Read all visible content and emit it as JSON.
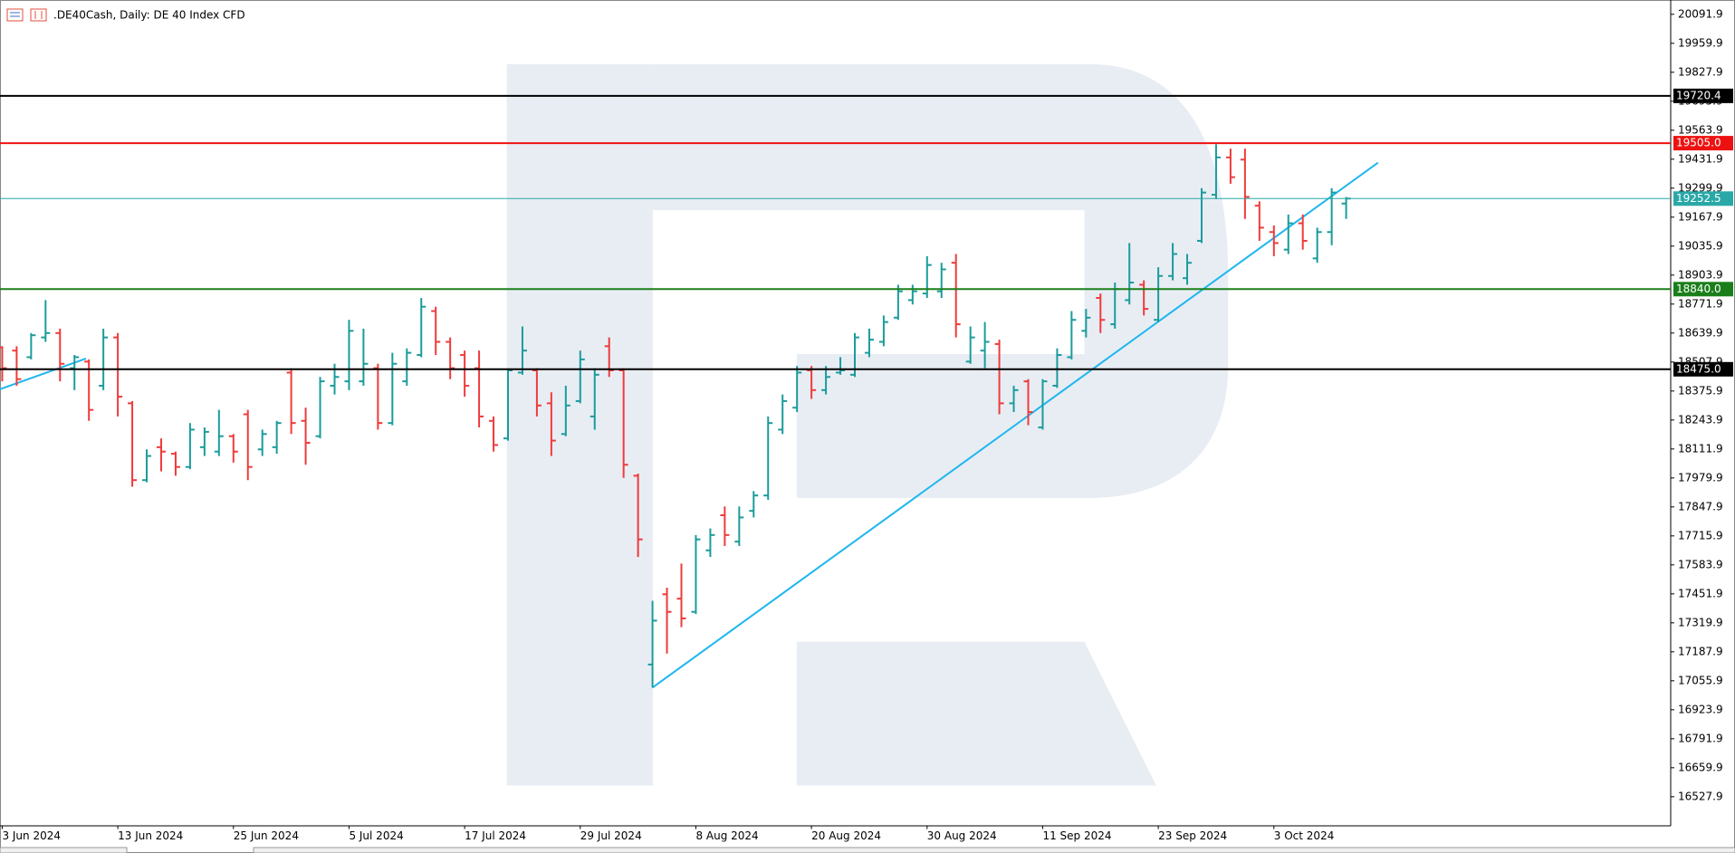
{
  "chart_data": {
    "type": "ohlc",
    "title": ".DE40Cash, Daily:  DE 40 Index CFD",
    "categories": [
      "3 Jun 2024",
      null,
      null,
      null,
      null,
      null,
      null,
      null,
      "13 Jun 2024",
      null,
      null,
      null,
      null,
      null,
      null,
      null,
      "25 Jun 2024",
      null,
      null,
      null,
      null,
      null,
      null,
      null,
      "5 Jul 2024",
      null,
      null,
      null,
      null,
      null,
      null,
      null,
      "17 Jul 2024",
      null,
      null,
      null,
      null,
      null,
      null,
      null,
      "29 Jul 2024",
      null,
      null,
      null,
      null,
      null,
      null,
      null,
      "8 Aug 2024",
      null,
      null,
      null,
      null,
      null,
      null,
      null,
      "20 Aug 2024",
      null,
      null,
      null,
      null,
      null,
      null,
      null,
      "30 Aug 2024",
      null,
      null,
      null,
      null,
      null,
      null,
      null,
      "11 Sep 2024",
      null,
      null,
      null,
      null,
      null,
      null,
      null,
      "23 Sep 2024",
      null,
      null,
      null,
      null,
      null,
      null,
      null,
      "3 Oct 2024",
      null,
      null,
      null,
      null,
      null
    ],
    "open": [
      18575,
      18560,
      18530,
      18620,
      18640,
      18480,
      18510,
      18400,
      18620,
      18320,
      17970,
      18120,
      18090,
      18030,
      18120,
      18100,
      18170,
      18270,
      18110,
      18120,
      18460,
      18240,
      18170,
      18400,
      18420,
      18420,
      18480,
      18230,
      18420,
      18540,
      18740,
      18600,
      18540,
      18480,
      18240,
      18160,
      18460,
      18470,
      18320,
      18180,
      18330,
      18260,
      18580,
      18470,
      17990,
      17130,
      17450,
      17430,
      17370,
      17650,
      17810,
      17690,
      17830,
      17900,
      18200,
      18300,
      18470,
      18380,
      18460,
      18450,
      18550,
      18600,
      18710,
      18790,
      18820,
      18830,
      18960,
      18510,
      18560,
      18590,
      18320,
      18420,
      18210,
      18400,
      18530,
      18650,
      18800,
      18680,
      18790,
      18860,
      18700,
      18900,
      18890,
      19060,
      19270,
      19440,
      19430,
      19220,
      19100,
      19020,
      19140,
      18980,
      19100,
      19230
    ],
    "high": [
      18580,
      18580,
      18640,
      18790,
      18660,
      18540,
      18520,
      18660,
      18640,
      18330,
      18110,
      18160,
      18100,
      18230,
      18210,
      18290,
      18180,
      18290,
      18200,
      18240,
      18480,
      18300,
      18440,
      18500,
      18700,
      18660,
      18500,
      18550,
      18570,
      18800,
      18760,
      18620,
      18560,
      18560,
      18260,
      18480,
      18670,
      18480,
      18370,
      18400,
      18560,
      18480,
      18620,
      18480,
      18000,
      17420,
      17480,
      17590,
      17720,
      17750,
      17850,
      17850,
      17920,
      18260,
      18360,
      18490,
      18490,
      18490,
      18530,
      18640,
      18660,
      18720,
      18860,
      18860,
      18990,
      18960,
      19000,
      18670,
      18690,
      18610,
      18400,
      18430,
      18430,
      18570,
      18740,
      18750,
      18820,
      18870,
      19050,
      18880,
      18940,
      19050,
      19000,
      19300,
      19500,
      19480,
      19480,
      19240,
      19130,
      19180,
      19180,
      19120,
      19300,
      19260
    ],
    "low": [
      18420,
      18400,
      18520,
      18600,
      18420,
      18380,
      18240,
      18380,
      18260,
      17940,
      17960,
      18010,
      17990,
      18020,
      18080,
      18080,
      18050,
      17970,
      18080,
      18090,
      18180,
      18040,
      18160,
      18360,
      18380,
      18400,
      18200,
      18220,
      18400,
      18530,
      18540,
      18430,
      18350,
      18210,
      18100,
      18150,
      18450,
      18260,
      18080,
      18170,
      18320,
      18200,
      18440,
      17980,
      17620,
      17025,
      17180,
      17300,
      17360,
      17620,
      17670,
      17670,
      17800,
      17880,
      18180,
      18280,
      18340,
      18360,
      18450,
      18440,
      18530,
      18580,
      18700,
      18770,
      18800,
      18800,
      18620,
      18500,
      18480,
      18270,
      18280,
      18220,
      18200,
      18390,
      18520,
      18620,
      18640,
      18660,
      18770,
      18720,
      18690,
      18880,
      18860,
      19050,
      19250,
      19320,
      19160,
      19060,
      18990,
      19000,
      19020,
      18960,
      19040,
      19160
    ],
    "close": [
      18480,
      18430,
      18630,
      18640,
      18500,
      18530,
      18290,
      18620,
      18350,
      17970,
      18080,
      18100,
      18030,
      18200,
      18190,
      18170,
      18100,
      18030,
      18180,
      18230,
      18230,
      18140,
      18420,
      18440,
      18650,
      18500,
      18230,
      18500,
      18550,
      18760,
      18600,
      18480,
      18400,
      18260,
      18130,
      18470,
      18560,
      18310,
      18150,
      18310,
      18520,
      18450,
      18470,
      18040,
      17700,
      17330,
      17370,
      17340,
      17700,
      17720,
      17720,
      17800,
      17900,
      18230,
      18330,
      18460,
      18380,
      18440,
      18470,
      18620,
      18610,
      18690,
      18830,
      18830,
      18950,
      18930,
      18680,
      18620,
      18600,
      18320,
      18380,
      18280,
      18420,
      18540,
      18700,
      18710,
      18700,
      18840,
      18870,
      18750,
      18900,
      19000,
      18960,
      19280,
      19440,
      19350,
      19260,
      19120,
      19050,
      19140,
      19060,
      19100,
      19280,
      19252.5
    ],
    "up_color": "#1a9c9c",
    "down_color": "#ef3b3b",
    "ylim": [
      16397,
      20147
    ],
    "yticks": [
      20091.9,
      19959.9,
      19827.9,
      19695.9,
      19563.9,
      19431.9,
      19299.9,
      19167.9,
      19035.9,
      18903.9,
      18771.9,
      18639.9,
      18507.9,
      18375.9,
      18243.9,
      18111.9,
      17979.9,
      17847.9,
      17715.9,
      17583.9,
      17451.9,
      17319.9,
      17187.9,
      17055.9,
      16923.9,
      16791.9,
      16659.9,
      16527.9
    ],
    "hlines": [
      {
        "value": 19720.4,
        "label": "19720.4",
        "color": "#000000"
      },
      {
        "value": 19505,
        "label": "19505.0",
        "color": "#ee1111"
      },
      {
        "value": 19252.5,
        "label": "19252.5",
        "color": "#2aa8a8"
      },
      {
        "value": 18840,
        "label": "18840.0",
        "color": "#1a7f1a"
      },
      {
        "value": 18475,
        "label": "18475.0",
        "color": "#000000"
      }
    ],
    "trendlines": [
      {
        "x": [
          45,
          95.2
        ],
        "y": [
          17025,
          19416
        ],
        "color": "#1fb6ee"
      },
      {
        "x": [
          -0.2,
          5.8
        ],
        "y": [
          18383,
          18524
        ],
        "color": "#1fb6ee"
      }
    ]
  }
}
